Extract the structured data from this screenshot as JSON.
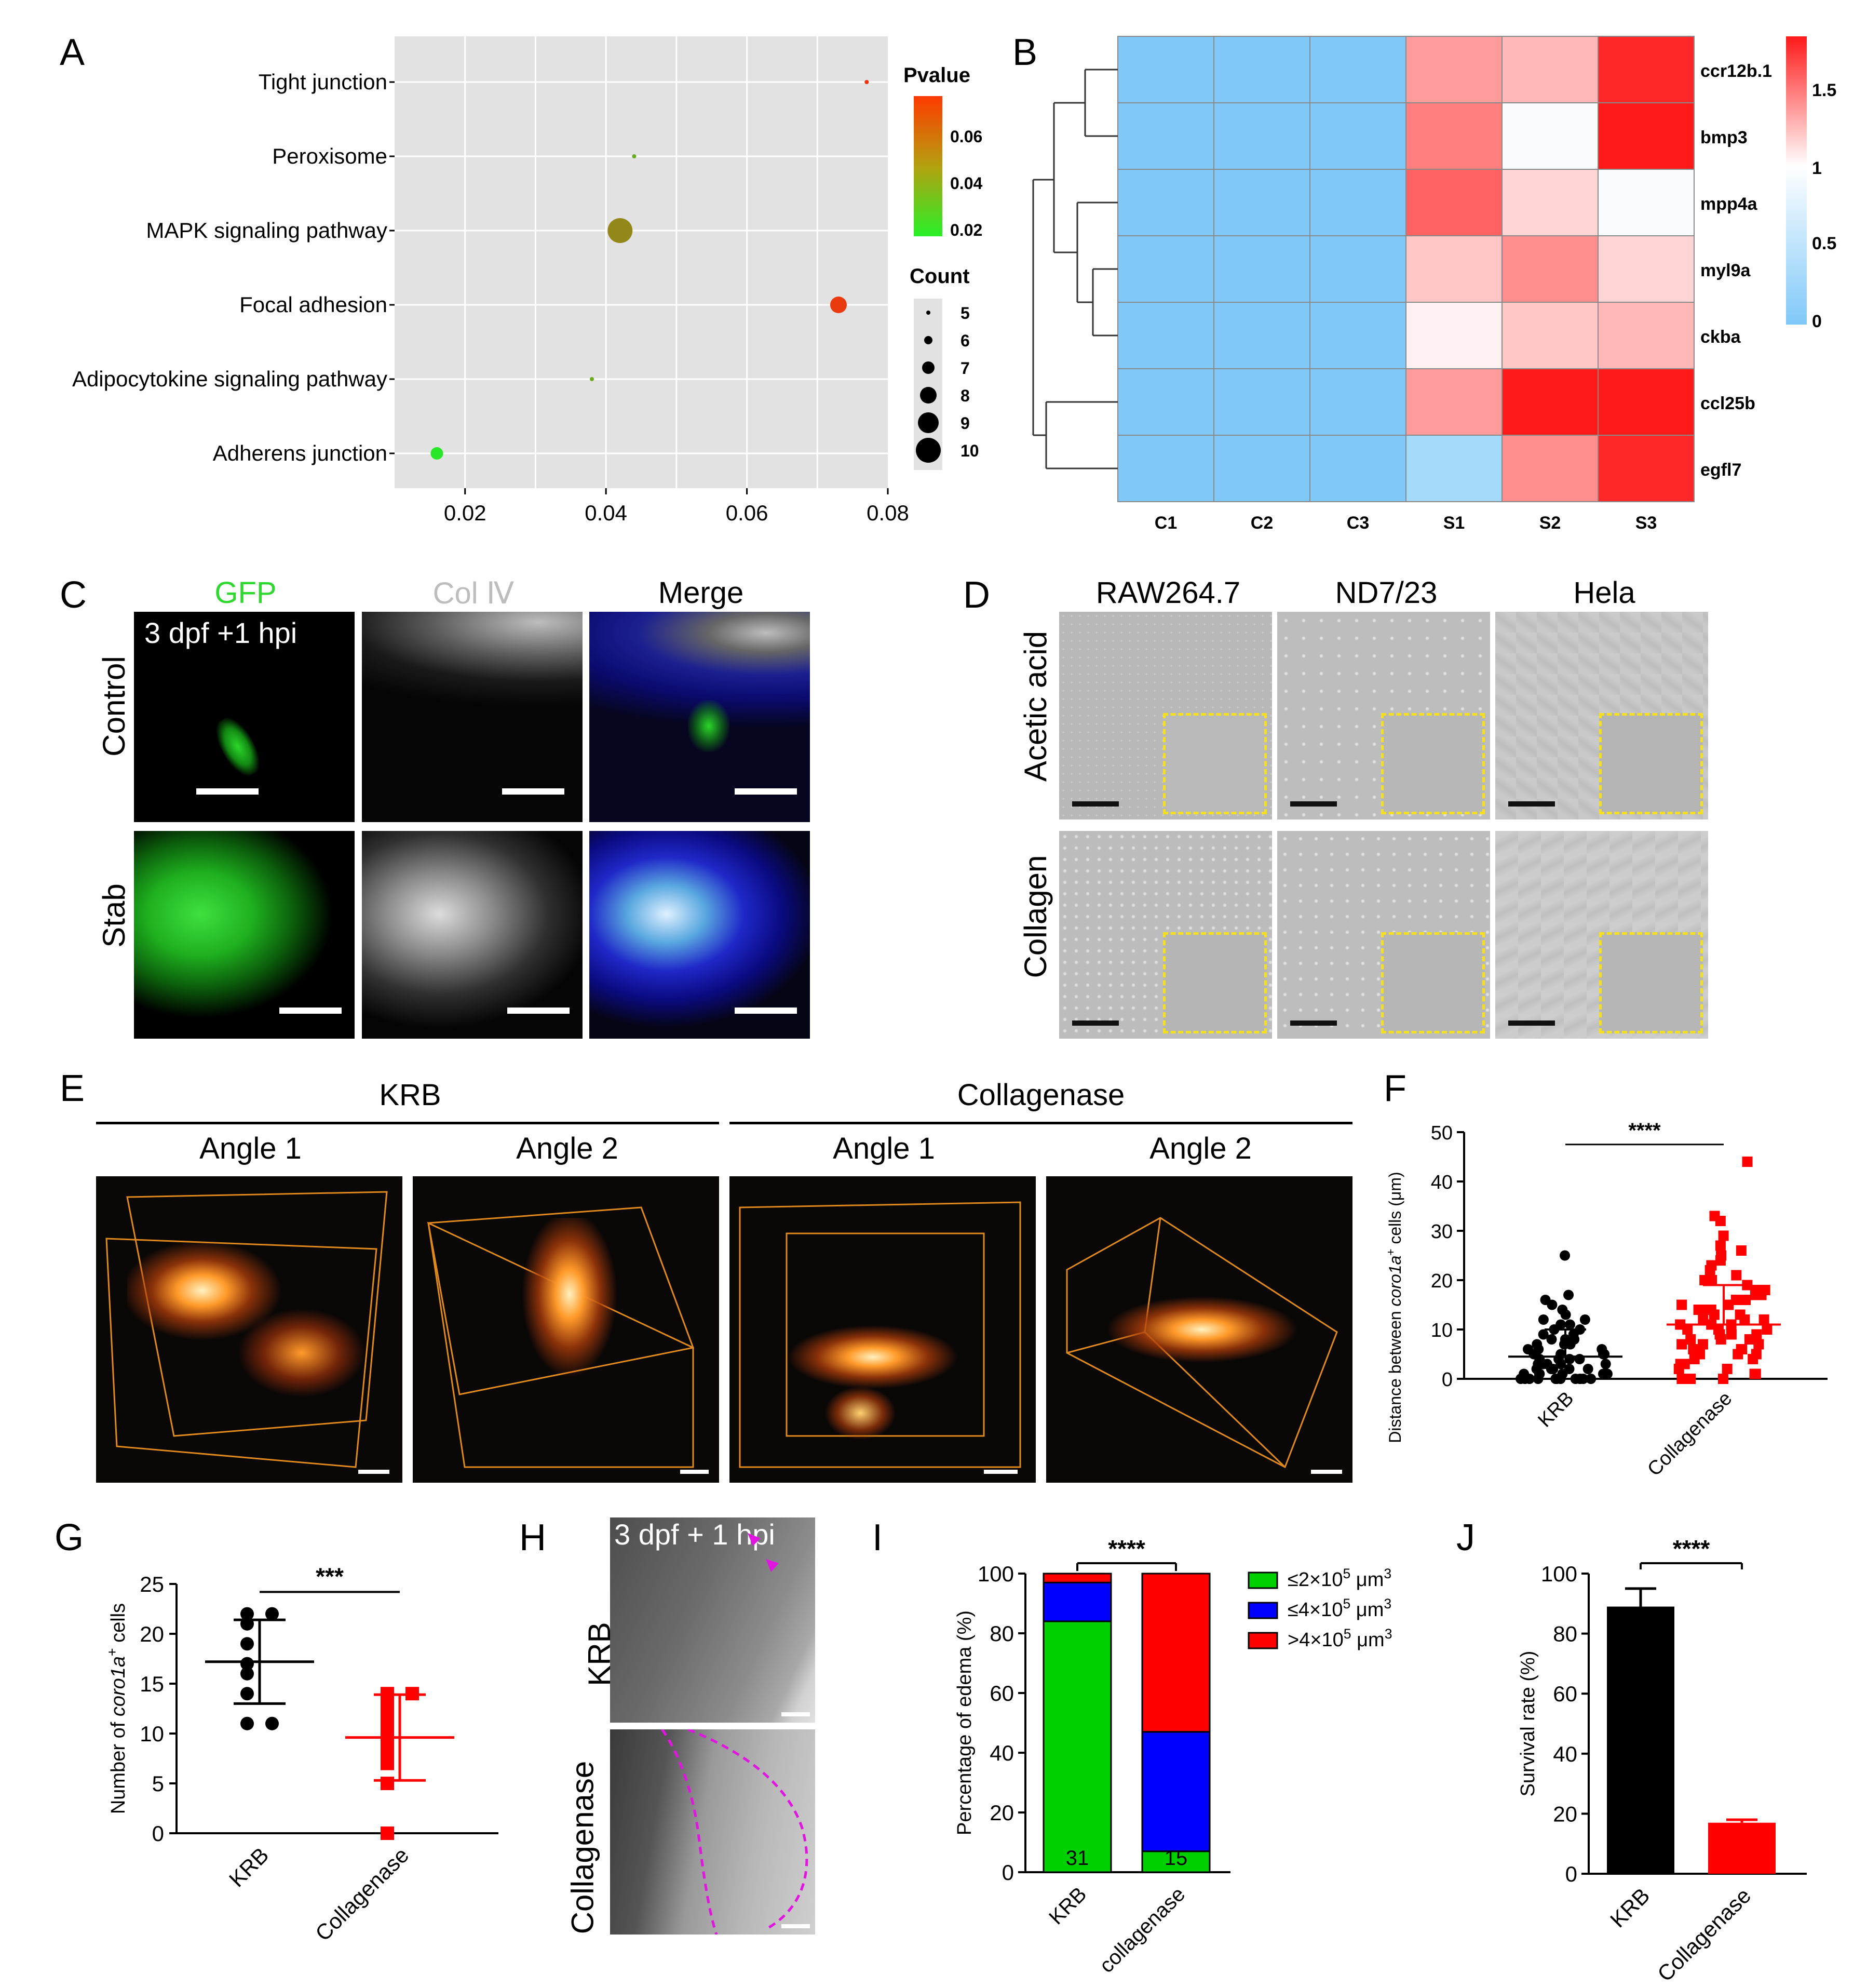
{
  "colors": {
    "green": "#00d000",
    "blue": "#0000ff",
    "red": "#ff0000",
    "black": "#000000",
    "orange_box": "#e08a1e",
    "yellow_box": "#f5e020",
    "heat_low": "#7fc8f8",
    "heat_high": "#ff1a1a"
  },
  "panels": {
    "A": {
      "letter": "A",
      "pvalue_title": "Pvalue",
      "count_title": "Count",
      "pvalue_ticks": [
        "0.06",
        "0.04",
        "0.02"
      ],
      "count_ticks": [
        "5",
        "6",
        "7",
        "8",
        "9",
        "10"
      ]
    },
    "B": {
      "letter": "B",
      "scale_ticks": [
        "1.5",
        "1",
        "0.5",
        "0"
      ]
    },
    "C": {
      "letter": "C",
      "col_labels": [
        "GFP",
        "Col Ⅳ",
        "Merge"
      ],
      "row_labels": [
        "Control",
        "Stab"
      ],
      "stamp": "3 dpf +1 hpi"
    },
    "D": {
      "letter": "D",
      "col_labels": [
        "RAW264.7",
        "ND7/23",
        "Hela"
      ],
      "row_labels": [
        "Acetic acid",
        "Collagen"
      ]
    },
    "E": {
      "letter": "E",
      "group_labels": [
        "KRB",
        "Collagenase"
      ],
      "angle_labels": [
        "Angle 1",
        "Angle 2",
        "Angle 1",
        "Angle 2"
      ]
    },
    "F": {
      "letter": "F",
      "ylabel_pre": "Distance between ",
      "ylabel_ital": "coro1a",
      "ylabel_sup": "+",
      "ylabel_post": " cells (μm)",
      "sig": "****"
    },
    "G": {
      "letter": "G",
      "ylabel_pre": "Number of ",
      "ylabel_ital": "coro1a",
      "ylabel_sup": "+",
      "ylabel_post": " cells",
      "sig": "***"
    },
    "H": {
      "letter": "H",
      "row_labels": [
        "KRB",
        "Collagenase"
      ],
      "stamp": "3 dpf + 1 hpi"
    },
    "I": {
      "letter": "I",
      "sig": "****",
      "legend": [
        {
          "pre": "≤2×10",
          "sup1": "5",
          "mid": " μm",
          "sup2": "3",
          "color": "#00d000"
        },
        {
          "pre": "≤4×10",
          "sup1": "5",
          "mid": " μm",
          "sup2": "3",
          "color": "#0000ff"
        },
        {
          "pre": ">4×10",
          "sup1": "5",
          "mid": " μm",
          "sup2": "3",
          "color": "#ff0000"
        }
      ]
    },
    "J": {
      "letter": "J",
      "sig": "****"
    }
  },
  "chart_data": [
    {
      "panel": "A",
      "type": "scatter",
      "categories": [
        "Tight junction",
        "Peroxisome",
        "MAPK signaling pathway",
        "Focal adhesion",
        "Adipocytokine signaling pathway",
        "Adherens junction"
      ],
      "x": [
        0.077,
        0.044,
        0.042,
        0.073,
        0.038,
        0.016
      ],
      "count": [
        5,
        5,
        10,
        8,
        5,
        7
      ],
      "pvalue": [
        0.068,
        0.035,
        0.045,
        0.065,
        0.035,
        0.02
      ],
      "xticks": [
        "0.02",
        "0.04",
        "0.06",
        "0.08"
      ],
      "xlim": [
        0.01,
        0.08
      ],
      "grid": true
    },
    {
      "panel": "B",
      "type": "heatmap",
      "columns": [
        "C1",
        "C2",
        "C3",
        "S1",
        "S2",
        "S3"
      ],
      "rows": [
        "ccr12b.1",
        "bmp3",
        "mpp4a",
        "myl9a",
        "ckba",
        "ccl25b",
        "egfl7"
      ],
      "values": [
        [
          0,
          0,
          0,
          1.35,
          1.25,
          1.75
        ],
        [
          0,
          0,
          0,
          1.45,
          0.95,
          1.8
        ],
        [
          0,
          0,
          0,
          1.55,
          1.15,
          0.95
        ],
        [
          0,
          0,
          0,
          1.2,
          1.4,
          1.15
        ],
        [
          0,
          0,
          0,
          1.05,
          1.2,
          1.25
        ],
        [
          0,
          0,
          0,
          1.35,
          1.9,
          1.9
        ],
        [
          0,
          0,
          0,
          0.3,
          1.4,
          1.75
        ]
      ],
      "color_range": [
        0,
        1.8
      ]
    },
    {
      "panel": "F",
      "type": "scatter",
      "categories": [
        "KRB",
        "Collagenase"
      ],
      "ylabel": "Distance between coro1a+ cells (μm)",
      "yticks": [
        "0",
        "10",
        "20",
        "30",
        "40",
        "50"
      ],
      "ylim": [
        0,
        50
      ],
      "series": [
        {
          "name": "KRB",
          "mean": 4.5,
          "sd": 5.5,
          "max": 25
        },
        {
          "name": "Collagenase",
          "mean": 11,
          "sd": 8,
          "max": 44
        }
      ]
    },
    {
      "panel": "G",
      "type": "scatter",
      "categories": [
        "KRB",
        "Collagenase"
      ],
      "ylabel": "Number of coro1a+ cells",
      "yticks": [
        "0",
        "5",
        "10",
        "15",
        "20",
        "25"
      ],
      "ylim": [
        0,
        25
      ],
      "series": [
        {
          "name": "KRB",
          "values": [
            22,
            22,
            21,
            19,
            17,
            16,
            14,
            11,
            11
          ],
          "mean": 17.2,
          "sd": 4.2
        },
        {
          "name": "Collagenase",
          "values": [
            14,
            14,
            13,
            12,
            11,
            10,
            9,
            8,
            7,
            5,
            0
          ],
          "mean": 9.6,
          "sd": 4.3
        }
      ]
    },
    {
      "panel": "I",
      "type": "bar",
      "categories": [
        "KRB",
        "collagenase"
      ],
      "ylabel": "Percentage of edema (%)",
      "yticks": [
        "0",
        "20",
        "40",
        "60",
        "80",
        "100"
      ],
      "ylim": [
        0,
        100
      ],
      "n_labels": [
        "31",
        "15"
      ],
      "series": [
        {
          "name": "≤2×10^5 μm^3",
          "values": [
            84,
            7
          ]
        },
        {
          "name": "≤4×10^5 μm^3",
          "values": [
            13,
            40
          ]
        },
        {
          "name": ">4×10^5 μm^3",
          "values": [
            3,
            53
          ]
        }
      ]
    },
    {
      "panel": "J",
      "type": "bar",
      "categories": [
        "KRB",
        "Collagenase"
      ],
      "ylabel": "Survival rate (%)",
      "yticks": [
        "0",
        "20",
        "40",
        "60",
        "80",
        "100"
      ],
      "ylim": [
        0,
        100
      ],
      "values": [
        89,
        17
      ],
      "errors": [
        6,
        1
      ]
    }
  ]
}
